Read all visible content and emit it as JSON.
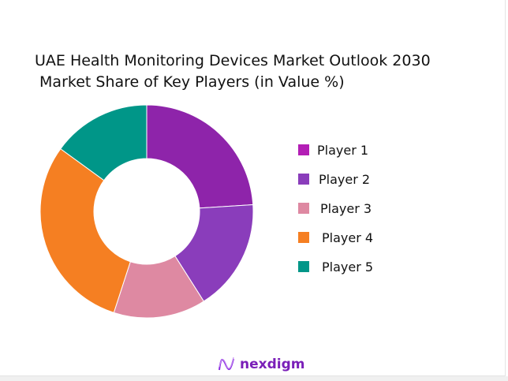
{
  "chart_data": {
    "type": "pie",
    "donut": true,
    "title_line1": "UAE Health Monitoring Devices Market Outlook 2030",
    "title_line2": " Market Share of Key Players (in Value %)",
    "categories": [
      "Player 1",
      "Player 2",
      "Player 3",
      "Player 4",
      "Player 5"
    ],
    "values": [
      24,
      17,
      14,
      30,
      15
    ],
    "unit": "%",
    "colors": [
      "#8E24AA",
      "#8A3DBB",
      "#DE89A2",
      "#F57F22",
      "#009688"
    ],
    "legend_colors": [
      "#B31EB5",
      "#8A3DBB",
      "#DE89A2",
      "#F57F22",
      "#009688"
    ],
    "legend_position": "right"
  },
  "branding": {
    "logo_text": "nexdigm"
  }
}
